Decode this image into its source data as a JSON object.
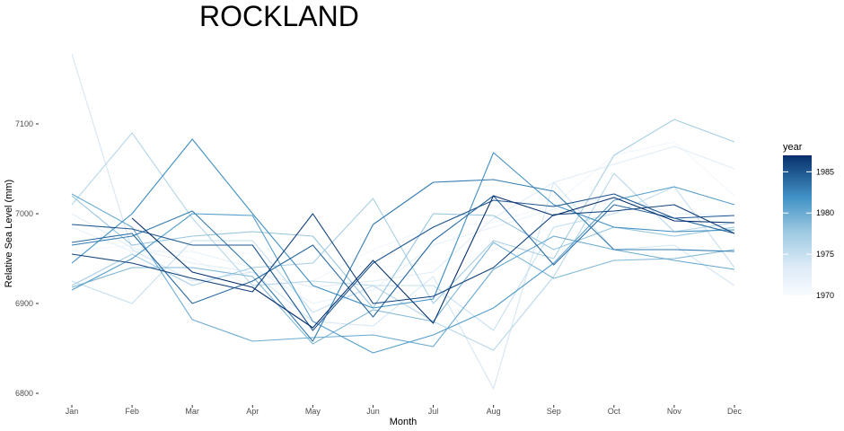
{
  "chart_data": {
    "type": "line",
    "title": "ROCKLAND",
    "xlabel": "Month",
    "ylabel": "Relative Sea Level (mm)",
    "categories": [
      "Jan",
      "Feb",
      "Mar",
      "Apr",
      "May",
      "Jun",
      "Jul",
      "Aug",
      "Sep",
      "Oct",
      "Nov",
      "Dec"
    ],
    "ylim": [
      6790,
      7180
    ],
    "yticks": [
      6800,
      6900,
      7000,
      7100
    ],
    "grid": false,
    "legend": {
      "title": "year",
      "position": "right",
      "type": "colorbar",
      "range": [
        1970,
        1987
      ],
      "ticks": [
        1970,
        1975,
        1980,
        1985
      ],
      "color_low": "#f7fbff",
      "color_high": "#08306b"
    },
    "series": [
      {
        "year": 1970,
        "values": [
          6990,
          6975,
          6965,
          6955,
          6945,
          6940,
          6945,
          6960,
          6985,
          7000,
          7005,
          6995
        ]
      },
      {
        "year": 1971,
        "values": [
          6958,
          6965,
          6950,
          6918,
          6925,
          6960,
          6985,
          6990,
          7010,
          7065,
          7080,
          7020
        ]
      },
      {
        "year": 1972,
        "values": [
          6985,
          6958,
          6958,
          6940,
          6900,
          6915,
          6965,
          6985,
          7005,
          7020,
          7000,
          6998
        ]
      },
      {
        "year": 1973,
        "values": [
          7000,
          6962,
          6945,
          6935,
          6918,
          6925,
          6935,
          6995,
          7035,
          7055,
          7075,
          7050
        ]
      },
      {
        "year": 1974,
        "values": [
          7178,
          6960,
          6925,
          6935,
          6880,
          6875,
          6930,
          6805,
          7035,
          6960,
          6965,
          6920
        ]
      },
      {
        "year": 1975,
        "values": [
          6925,
          6900,
          6970,
          6970,
          6890,
          6920,
          6920,
          6870,
          6985,
          7000,
          7030,
          6940
        ]
      },
      {
        "year": 1976,
        "values": [
          7010,
          7090,
          6995,
          6920,
          6925,
          6920,
          6880,
          6848,
          6930,
          7045,
          6980,
          6990
        ]
      },
      {
        "year": 1977,
        "values": [
          6920,
          6955,
          6920,
          6940,
          6945,
          7017,
          6900,
          6970,
          6950,
          7065,
          7105,
          7080
        ]
      },
      {
        "year": 1978,
        "values": [
          7020,
          6965,
          6975,
          6980,
          6975,
          6895,
          7000,
          6998,
          6960,
          6985,
          6975,
          6985
        ]
      },
      {
        "year": 1979,
        "values": [
          6918,
          6940,
          6940,
          6930,
          6855,
          6893,
          6880,
          6968,
          6928,
          6948,
          6950,
          6960
        ]
      },
      {
        "year": 1980,
        "values": [
          7022,
          6985,
          6882,
          6858,
          6862,
          6865,
          6852,
          6938,
          6975,
          6960,
          6948,
          6938
        ]
      },
      {
        "year": 1981,
        "values": [
          6915,
          6950,
          7000,
          6998,
          6880,
          6845,
          6865,
          6895,
          6945,
          7015,
          7030,
          7010
        ]
      },
      {
        "year": 1982,
        "values": [
          6945,
          7000,
          7083,
          7000,
          6920,
          6895,
          6905,
          7068,
          7010,
          6985,
          6980,
          6982
        ]
      },
      {
        "year": 1983,
        "values": [
          6965,
          6975,
          7003,
          6938,
          6858,
          6988,
          7035,
          7038,
          7025,
          6960,
          6960,
          6958
        ]
      },
      {
        "year": 1984,
        "values": [
          6968,
          6978,
          6900,
          6925,
          6965,
          6885,
          6970,
          7020,
          6943,
          7010,
          6995,
          6978
        ]
      },
      {
        "year": 1985,
        "values": [
          6988,
          6983,
          6965,
          6965,
          6870,
          6945,
          6985,
          7015,
          7008,
          7022,
          6995,
          6998
        ]
      },
      {
        "year": 1986,
        "values": [
          6955,
          6945,
          6928,
          6913,
          7000,
          6900,
          6908,
          6940,
          6999,
          7003,
          7010,
          6978
        ]
      },
      {
        "year": 1987,
        "values": [
          null,
          6995,
          6935,
          6918,
          6873,
          6948,
          6878,
          7020,
          6998,
          7018,
          6992,
          6990
        ]
      }
    ]
  }
}
